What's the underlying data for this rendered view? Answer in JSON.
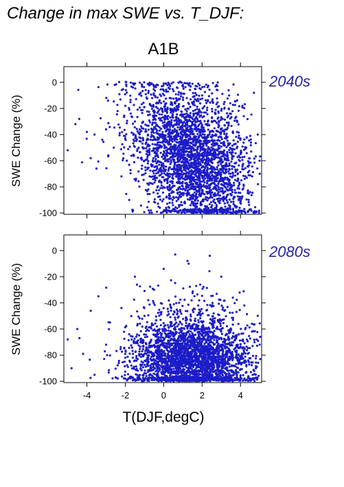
{
  "header": {
    "title": "Change in max SWE vs. T_DJF:",
    "scenario": "A1B"
  },
  "colors": {
    "points": "#1c1cc8",
    "period_label": "#2323a8"
  },
  "chart_data": [
    {
      "type": "scatter",
      "period_label": "2040s",
      "ylabel": "SWE Change (%)",
      "xlim": [
        -5.2,
        5.1
      ],
      "ylim": [
        -101,
        12
      ],
      "yticks": [
        0,
        -20,
        -40,
        -60,
        -80,
        -100
      ],
      "xticks": [
        -4,
        -2,
        0,
        2,
        4
      ],
      "x_tick_labels_shown": false,
      "approx_n_points": 3000,
      "distribution": "dense cloud centred near T 1 to 2 degC; SWE change mostly -20 to -100 %, fewer points toward 0 % and at T below -2 degC",
      "points": [
        [
          -5.0,
          -52
        ],
        [
          -4.6,
          -32
        ],
        [
          -4.4,
          -28
        ],
        [
          -4.0,
          -38
        ],
        [
          -3.8,
          -58
        ],
        [
          -3.6,
          -40
        ],
        [
          -3.5,
          -66
        ],
        [
          -3.2,
          -44
        ],
        [
          -3.0,
          -36
        ],
        [
          -2.9,
          -14
        ],
        [
          -2.6,
          -50
        ],
        [
          -2.4,
          -22
        ],
        [
          -2.2,
          -72
        ],
        [
          -2.0,
          -18
        ],
        [
          -1.8,
          -90
        ],
        [
          -1.6,
          -4
        ],
        [
          -1.5,
          -30
        ],
        [
          -1.2,
          -8
        ],
        [
          -1.0,
          -60
        ],
        [
          -0.8,
          -82
        ],
        [
          -0.6,
          -12
        ],
        [
          -0.4,
          -44
        ],
        [
          -0.2,
          -96
        ],
        [
          0.0,
          -1
        ],
        [
          0.1,
          -26
        ],
        [
          0.3,
          -70
        ],
        [
          0.5,
          0
        ],
        [
          0.6,
          -52
        ],
        [
          0.8,
          -88
        ],
        [
          1.0,
          -2
        ],
        [
          1.1,
          -38
        ],
        [
          1.2,
          -64
        ],
        [
          1.4,
          -94
        ],
        [
          1.5,
          -16
        ],
        [
          1.6,
          -80
        ],
        [
          1.8,
          -1
        ],
        [
          1.9,
          -48
        ],
        [
          2.0,
          -72
        ],
        [
          2.2,
          -98
        ],
        [
          2.3,
          -30
        ],
        [
          2.5,
          -58
        ],
        [
          2.6,
          -86
        ],
        [
          2.8,
          -6
        ],
        [
          3.0,
          -42
        ],
        [
          3.1,
          -76
        ],
        [
          3.3,
          -97
        ],
        [
          3.5,
          -24
        ],
        [
          3.7,
          -62
        ],
        [
          3.9,
          -90
        ],
        [
          4.1,
          -18
        ],
        [
          4.3,
          -50
        ],
        [
          4.5,
          -84
        ],
        [
          4.7,
          -8
        ],
        [
          4.9,
          -40
        ],
        [
          5.0,
          -70
        ]
      ]
    },
    {
      "type": "scatter",
      "period_label": "2080s",
      "ylabel": "SWE Change (%)",
      "xlabel": "T(DJF,degC)",
      "xlim": [
        -5.2,
        5.1
      ],
      "ylim": [
        -101,
        12
      ],
      "yticks": [
        0,
        -20,
        -40,
        -60,
        -80,
        -100
      ],
      "xticks": [
        -4,
        -2,
        0,
        2,
        4
      ],
      "x_tick_labels_shown": true,
      "approx_n_points": 3000,
      "distribution": "dense cloud centred near T 1 to 2 degC; SWE change mostly -60 to -100 %, sparse points up to 0 % near T 0 to 3 degC",
      "points": [
        [
          -5.0,
          -68
        ],
        [
          -4.8,
          -90
        ],
        [
          -4.5,
          -60
        ],
        [
          -4.2,
          -79
        ],
        [
          -3.8,
          -46
        ],
        [
          -3.6,
          -95
        ],
        [
          -3.4,
          -35
        ],
        [
          -3.0,
          -72
        ],
        [
          -2.8,
          -55
        ],
        [
          -2.5,
          -97
        ],
        [
          -2.2,
          -44
        ],
        [
          -2.0,
          -82
        ],
        [
          -1.8,
          -64
        ],
        [
          -1.5,
          -20
        ],
        [
          -1.2,
          -90
        ],
        [
          -1.0,
          -50
        ],
        [
          -0.8,
          -76
        ],
        [
          -0.5,
          -30
        ],
        [
          -0.3,
          -98
        ],
        [
          0.0,
          -14
        ],
        [
          0.2,
          -66
        ],
        [
          0.4,
          -88
        ],
        [
          0.6,
          -3
        ],
        [
          0.8,
          -40
        ],
        [
          1.0,
          -80
        ],
        [
          1.1,
          -96
        ],
        [
          1.3,
          -10
        ],
        [
          1.5,
          -58
        ],
        [
          1.7,
          -92
        ],
        [
          1.9,
          -26
        ],
        [
          2.0,
          -74
        ],
        [
          2.2,
          -99
        ],
        [
          2.4,
          -4
        ],
        [
          2.6,
          -48
        ],
        [
          2.8,
          -86
        ],
        [
          3.0,
          -20
        ],
        [
          3.2,
          -68
        ],
        [
          3.4,
          -94
        ],
        [
          3.6,
          -36
        ],
        [
          3.8,
          -78
        ],
        [
          4.0,
          -97
        ],
        [
          4.2,
          -42
        ],
        [
          4.4,
          -84
        ],
        [
          4.6,
          -62
        ],
        [
          4.8,
          -90
        ],
        [
          5.0,
          -72
        ]
      ]
    }
  ]
}
